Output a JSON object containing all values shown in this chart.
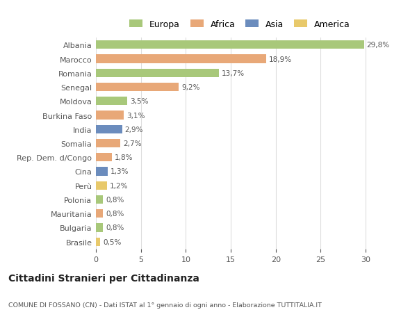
{
  "countries": [
    "Albania",
    "Marocco",
    "Romania",
    "Senegal",
    "Moldova",
    "Burkina Faso",
    "India",
    "Somalia",
    "Rep. Dem. d/Congo",
    "Cina",
    "Perù",
    "Polonia",
    "Mauritania",
    "Bulgaria",
    "Brasile"
  ],
  "values": [
    29.8,
    18.9,
    13.7,
    9.2,
    3.5,
    3.1,
    2.9,
    2.7,
    1.8,
    1.3,
    1.2,
    0.8,
    0.8,
    0.8,
    0.5
  ],
  "labels": [
    "29,8%",
    "18,9%",
    "13,7%",
    "9,2%",
    "3,5%",
    "3,1%",
    "2,9%",
    "2,7%",
    "1,8%",
    "1,3%",
    "1,2%",
    "0,8%",
    "0,8%",
    "0,8%",
    "0,5%"
  ],
  "continents": [
    "Europa",
    "Africa",
    "Europa",
    "Africa",
    "Europa",
    "Africa",
    "Asia",
    "Africa",
    "Africa",
    "Asia",
    "America",
    "Europa",
    "Africa",
    "Europa",
    "America"
  ],
  "continent_colors": {
    "Europa": "#a8c87a",
    "Africa": "#e8a878",
    "Asia": "#6b8cbd",
    "America": "#e8c96b"
  },
  "legend_order": [
    "Europa",
    "Africa",
    "Asia",
    "America"
  ],
  "title": "Cittadini Stranieri per Cittadinanza",
  "subtitle": "COMUNE DI FOSSANO (CN) - Dati ISTAT al 1° gennaio di ogni anno - Elaborazione TUTTITALIA.IT",
  "xlim": [
    0,
    32
  ],
  "xticks": [
    0,
    5,
    10,
    15,
    20,
    25,
    30
  ],
  "bar_background": "#ffffff",
  "grid_color": "#dddddd",
  "text_color": "#555555",
  "label_color": "#555555"
}
